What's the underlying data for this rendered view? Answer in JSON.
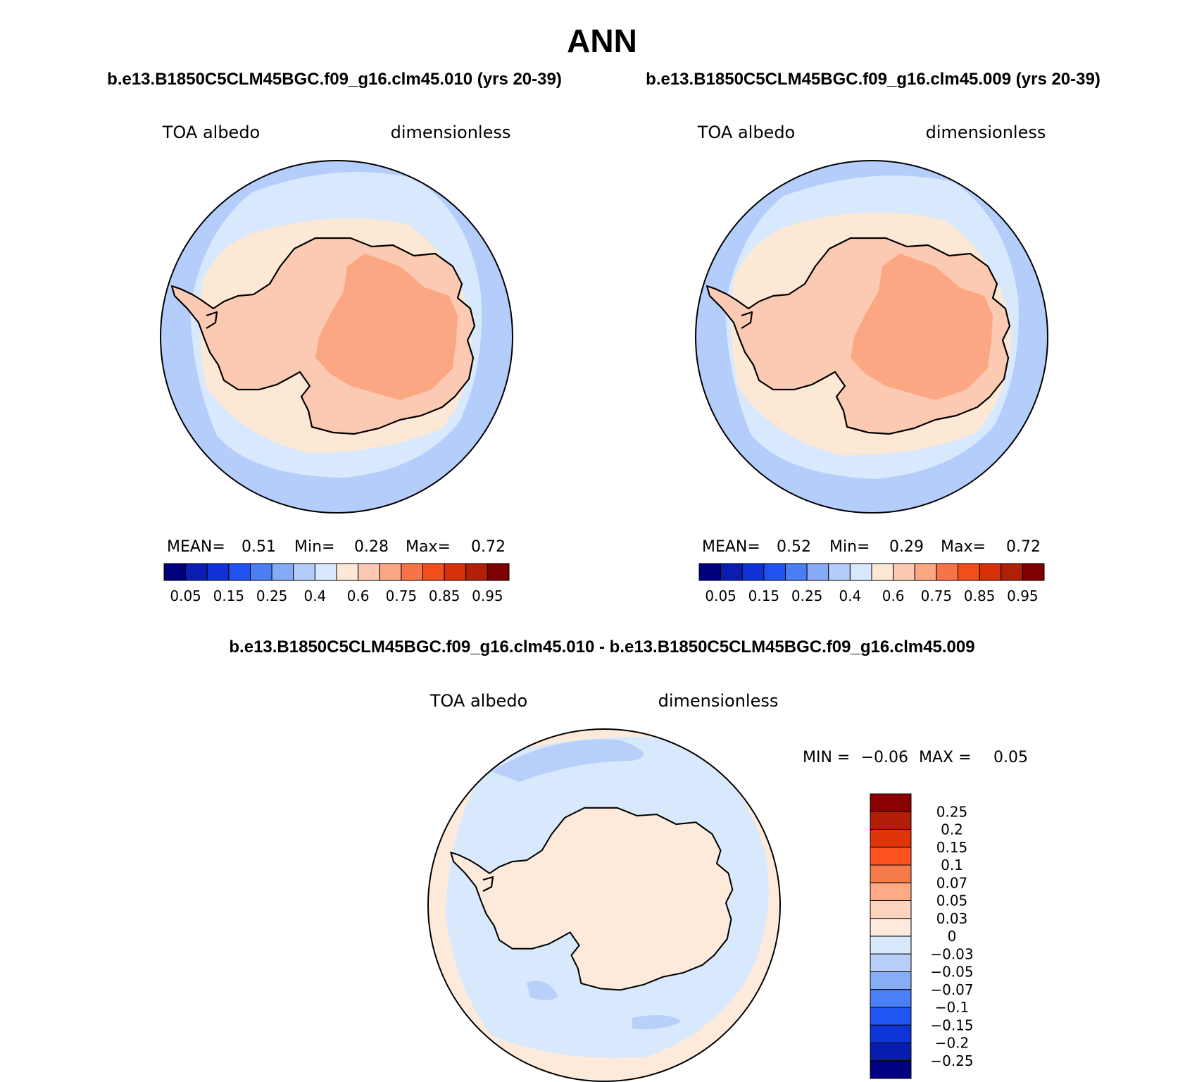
{
  "title": "ANN",
  "panels": [
    {
      "case_label": "b.e13.B1850C5CLM45BGC.f09_g16.clm45.010 (yrs 20-39)",
      "left_label": "TOA albedo",
      "right_label": "dimensionless",
      "stats": {
        "mean_label": "MEAN=",
        "mean": "0.51",
        "min_label": "Min=",
        "min": "0.28",
        "max_label": "Max=",
        "max": "0.72"
      }
    },
    {
      "case_label": "b.e13.B1850C5CLM45BGC.f09_g16.clm45.009 (yrs 20-39)",
      "left_label": "TOA albedo",
      "right_label": "dimensionless",
      "stats": {
        "mean_label": "MEAN=",
        "mean": "0.52",
        "min_label": "Min=",
        "min": "0.29",
        "max_label": "Max=",
        "max": "0.72"
      }
    }
  ],
  "diff_panel": {
    "title": "b.e13.B1850C5CLM45BGC.f09_g16.clm45.010 - b.e13.B1850C5CLM45BGC.f09_g16.clm45.009",
    "left_label": "TOA albedo",
    "right_label": "dimensionless",
    "minmax": {
      "min_label": "MIN =",
      "min": "−0.06",
      "max_label": "MAX =",
      "max": "0.05"
    }
  },
  "colorbar_main": {
    "colors": [
      "#00007f",
      "#0a1db0",
      "#1030d8",
      "#1f52f0",
      "#4a7ef2",
      "#85abf7",
      "#b5cdfa",
      "#d8e9fd",
      "#fde8d6",
      "#fccab2",
      "#fca784",
      "#f77448",
      "#f04f1c",
      "#d6300a",
      "#b02006",
      "#7f0000"
    ],
    "labels": [
      "0.05",
      "0.15",
      "0.25",
      "0.4",
      "0.6",
      "0.75",
      "0.85",
      "0.95"
    ]
  },
  "colorbar_diff": {
    "colors": [
      "#8b0000",
      "#b31c05",
      "#e03508",
      "#ff5421",
      "#f77a4a",
      "#fcab86",
      "#fcd3bc",
      "#fdeadb",
      "#d8e9fd",
      "#b8cffa",
      "#87adf7",
      "#4a7ff5",
      "#1f55f0",
      "#0c34d6",
      "#081cae",
      "#000080"
    ],
    "labels": [
      "0.25",
      "0.2",
      "0.15",
      "0.1",
      "0.07",
      "0.05",
      "0.03",
      "0",
      "−0.03",
      "−0.05",
      "−0.07",
      "−0.1",
      "−0.15",
      "−0.2",
      "−0.25"
    ]
  },
  "map_colors": {
    "outer": "#b5cdfa",
    "ring": "#d8e9fd",
    "ice": "#fde8d6",
    "land": "#fccab2",
    "plateau": "#fca784",
    "diff_bg": "#fdeadb",
    "diff_ring": "#d8e9fd",
    "diff_neg": "#b8cffa"
  }
}
